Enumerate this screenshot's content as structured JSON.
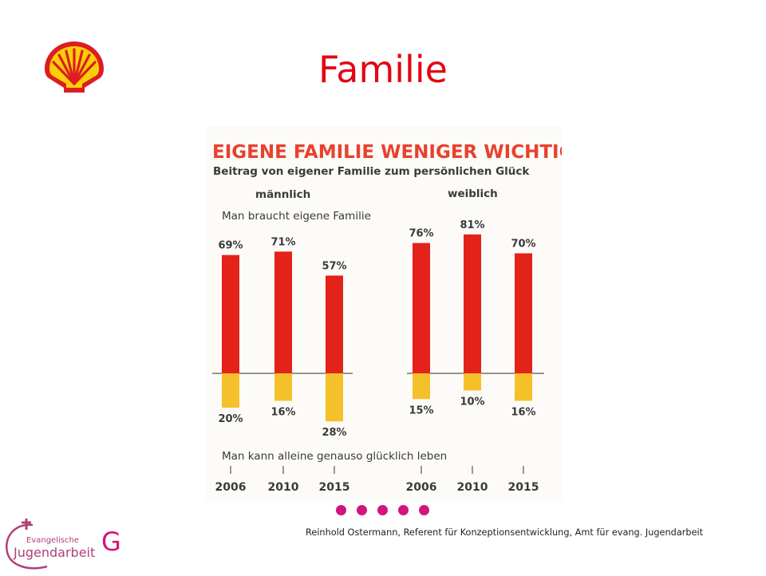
{
  "slide": {
    "title": "Familie",
    "footer": "Reinhold Ostermann, Referent für Konzeptionsentwicklung,  Amt für evang. Jugendarbeit",
    "g_mark": "G",
    "dots_count": 5
  },
  "logos": {
    "shell_icon": "shell-logo-icon",
    "ej_line1": "Evangelische",
    "ej_line2": "Jugendarbeit"
  },
  "colors": {
    "title": "#e30613",
    "bar_up": "#e32219",
    "bar_down": "#f5c12b",
    "accent_pink": "#d3137f",
    "heading": "#e8412f"
  },
  "chart_data": {
    "type": "bar",
    "title": "EIGENE FAMILIE WENIGER WICHTIG",
    "subtitle": "Beitrag von eigener Familie zum persönlichen Glück",
    "top_label": "Man braucht eigene Familie",
    "bottom_label": "Man kann alleine genauso glücklich leben",
    "groups": [
      {
        "name": "männlich",
        "categories": [
          "2006",
          "2010",
          "2015"
        ],
        "up_values": [
          69,
          71,
          57
        ],
        "down_values": [
          20,
          16,
          28
        ]
      },
      {
        "name": "weiblich",
        "categories": [
          "2006",
          "2010",
          "2015"
        ],
        "up_values": [
          76,
          81,
          70
        ],
        "down_values": [
          15,
          10,
          16
        ]
      }
    ],
    "unit": "%"
  }
}
